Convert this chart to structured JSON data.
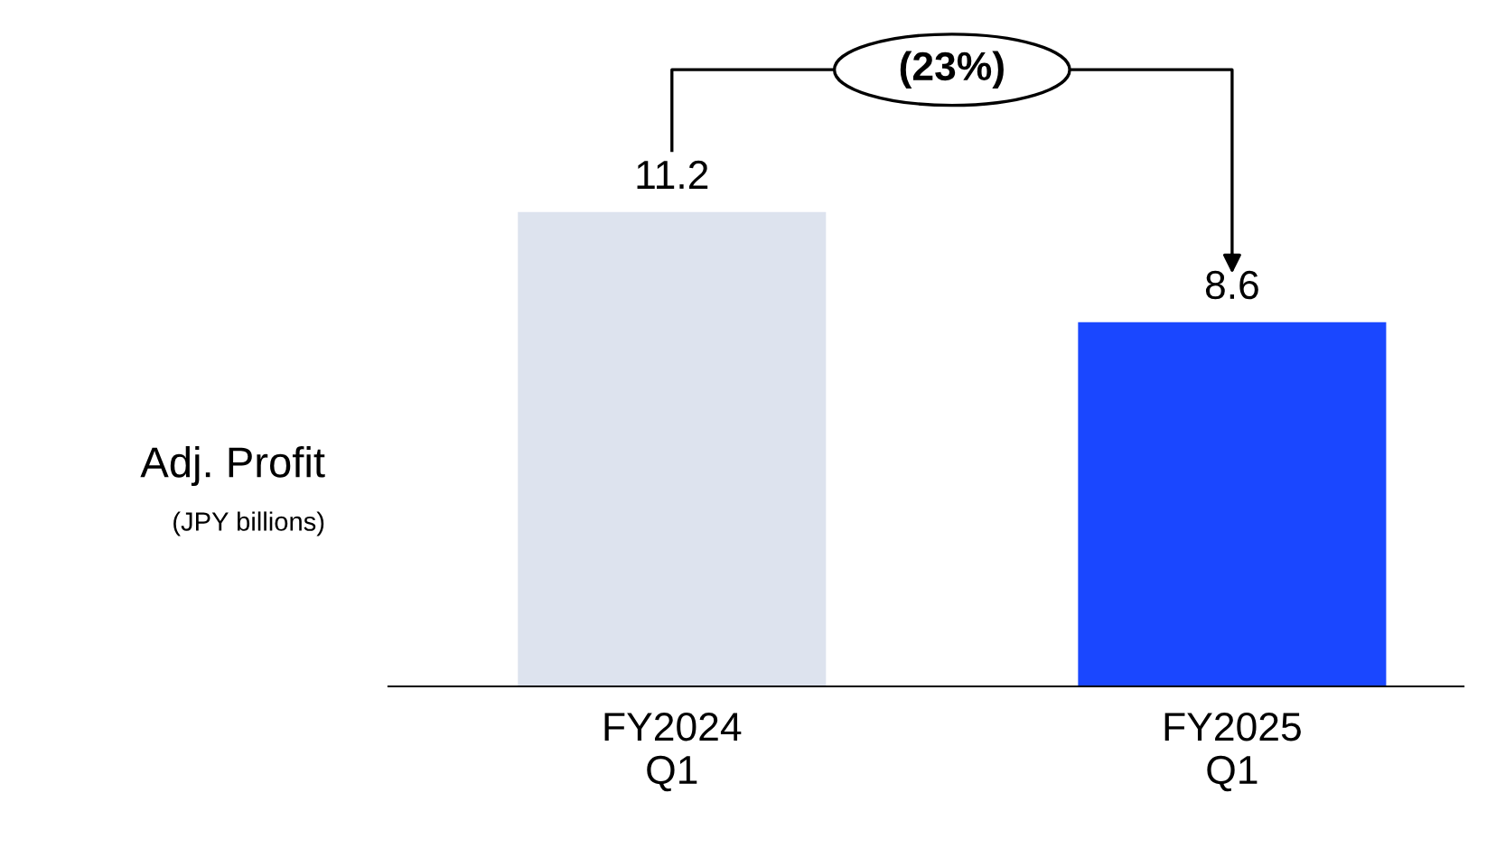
{
  "chart_data": {
    "type": "bar",
    "categories": [
      "FY2024\nQ1",
      "FY2025\nQ1"
    ],
    "values": [
      11.2,
      8.6
    ],
    "colors": [
      "#dde3ee",
      "#1a47ff"
    ],
    "data_labels": true,
    "ylabel": "Adj. Profit",
    "annotations": [
      "(JPY billions)",
      "(23%)"
    ],
    "grid": false
  }
}
